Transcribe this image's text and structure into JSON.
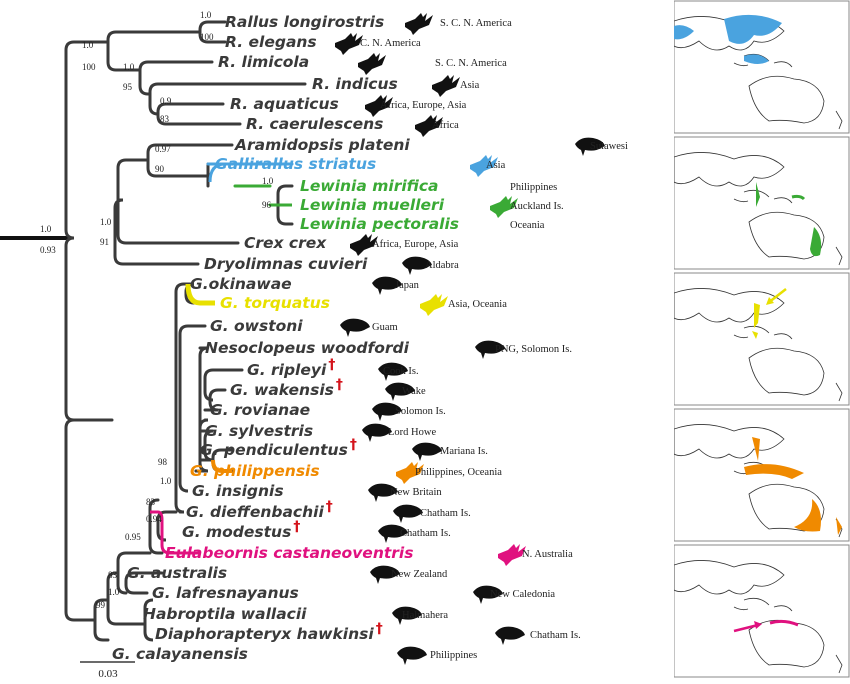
{
  "colors": {
    "branch": "#3a3a3a",
    "blue": "#4aa3df",
    "green": "#3aaa35",
    "yellow": "#e8e000",
    "orange": "#f08a00",
    "magenta": "#e0117f",
    "dagger": "#d4131b",
    "silhouette": "#111111",
    "map_outline": "#333333"
  },
  "taxa": [
    {
      "name": "Rallus longirostris",
      "region": "S. C. N. America",
      "icon": "flying-rail-icon",
      "color": "#3a3a3a"
    },
    {
      "name": "R. elegans",
      "region": "C. N. America",
      "icon": "flying-rail-icon",
      "color": "#3a3a3a"
    },
    {
      "name": "R. limicola",
      "region": "S. C. N. America",
      "icon": "flying-rail-icon",
      "color": "#3a3a3a"
    },
    {
      "name": "R. indicus",
      "region": "Asia",
      "icon": "flying-rail-icon",
      "color": "#3a3a3a"
    },
    {
      "name": "R. aquaticus",
      "region": "Africa, Europe, Asia",
      "icon": "flying-rail-icon",
      "color": "#3a3a3a"
    },
    {
      "name": "R. caerulescens",
      "region": "Africa",
      "icon": "flying-rail-icon",
      "color": "#3a3a3a"
    },
    {
      "name": "Aramidopsis plateni",
      "region": "Sulawesi",
      "icon": "flightless-rail-icon",
      "color": "#3a3a3a"
    },
    {
      "name": "Gallirallus striatus",
      "region": "Asia",
      "icon": "flying-rail-icon",
      "color": "#4aa3df"
    },
    {
      "name": "Lewinia mirifica",
      "region": "Philippines",
      "icon": "",
      "color": "#3aaa35"
    },
    {
      "name": "Lewinia muelleri",
      "region": "Auckland Is.",
      "icon": "flying-rail-icon",
      "color": "#3aaa35"
    },
    {
      "name": "Lewinia pectoralis",
      "region": "Oceania",
      "icon": "",
      "color": "#3aaa35"
    },
    {
      "name": "Crex crex",
      "region": "Africa, Europe, Asia",
      "icon": "flying-rail-icon",
      "color": "#3a3a3a"
    },
    {
      "name": "Dryolimnas cuvieri",
      "region": "Aldabra",
      "icon": "flightless-rail-icon",
      "color": "#3a3a3a"
    },
    {
      "name": "G.okinawae",
      "region": "Japan",
      "icon": "flightless-rail-icon",
      "color": "#3a3a3a"
    },
    {
      "name": "G. torquatus",
      "region": "Asia, Oceania",
      "icon": "flying-rail-icon",
      "color": "#e8e000"
    },
    {
      "name": "G. owstoni",
      "region": "Guam",
      "icon": "flightless-rail-icon",
      "color": "#3a3a3a"
    },
    {
      "name": "Nesoclopeus woodfordi",
      "region": "PNG, Solomon Is.",
      "icon": "flightless-rail-icon",
      "color": "#3a3a3a"
    },
    {
      "name": "G. ripleyi",
      "region": "Cook Is.",
      "icon": "flightless-rail-icon",
      "color": "#3a3a3a",
      "extinct": "†"
    },
    {
      "name": "G. wakensis",
      "region": "Wake",
      "icon": "flightless-rail-icon",
      "color": "#3a3a3a",
      "extinct": "†"
    },
    {
      "name": "G. rovianae",
      "region": "Solomon Is.",
      "icon": "flightless-rail-icon",
      "color": "#3a3a3a"
    },
    {
      "name": "G. sylvestris",
      "region": "Lord Howe",
      "icon": "flightless-rail-icon",
      "color": "#3a3a3a"
    },
    {
      "name": "G. pendiculentus",
      "region": "Mariana Is.",
      "icon": "flightless-rail-icon",
      "color": "#3a3a3a",
      "extinct": "†"
    },
    {
      "name": "G. philippensis",
      "region": "Philippines, Oceania",
      "icon": "flying-rail-icon",
      "color": "#f08a00"
    },
    {
      "name": "G. insignis",
      "region": "New Britain",
      "icon": "flightless-rail-icon",
      "color": "#3a3a3a"
    },
    {
      "name": "G. dieffenbachii",
      "region": "Chatham Is.",
      "icon": "flightless-rail-icon",
      "color": "#3a3a3a",
      "extinct": "†"
    },
    {
      "name": "G. modestus",
      "region": "Chatham Is.",
      "icon": "flightless-rail-icon",
      "color": "#3a3a3a",
      "extinct": "†"
    },
    {
      "name": "Eulabeornis castaneoventris",
      "region": "N. Australia",
      "icon": "flying-rail-icon",
      "color": "#e0117f"
    },
    {
      "name": "G. australis",
      "region": "New Zealand",
      "icon": "flightless-rail-icon",
      "color": "#3a3a3a"
    },
    {
      "name": "G. lafresnayanus",
      "region": "New Caledonia",
      "icon": "flightless-rail-icon",
      "color": "#3a3a3a"
    },
    {
      "name": "Habroptila wallacii",
      "region": "Halmahera",
      "icon": "flightless-rail-icon",
      "color": "#3a3a3a"
    },
    {
      "name": "Diaphorapteryx hawkinsi",
      "region": "Chatham Is.",
      "icon": "flightless-rail-icon",
      "color": "#3a3a3a",
      "extinct": "†"
    },
    {
      "name": "G. calayanensis",
      "region": "Philippines",
      "icon": "flightless-rail-icon",
      "color": "#3a3a3a"
    }
  ],
  "support_values": [
    "1.0",
    "100",
    "1.0",
    "100",
    "1.0",
    "95",
    "0.9",
    "83",
    "0.97",
    "90",
    "1.0",
    "96",
    "1.0",
    "91",
    "1.0",
    "0.93",
    "98",
    "1.0",
    "83",
    "0.94",
    "0.95",
    "83",
    "1.0",
    "99"
  ],
  "scale_bar": {
    "label": "0.03"
  },
  "maps": [
    {
      "label": "",
      "highlight": "#4aa3df",
      "arrow": ""
    },
    {
      "label": "",
      "highlight": "#3aaa35",
      "arrow": ""
    },
    {
      "label": "",
      "highlight": "#e8e000",
      "arrow": "#e8e000"
    },
    {
      "label": "",
      "highlight": "#f08a00",
      "arrow": ""
    },
    {
      "label": "",
      "highlight": "#e0117f",
      "arrow": "#e0117f"
    }
  ]
}
